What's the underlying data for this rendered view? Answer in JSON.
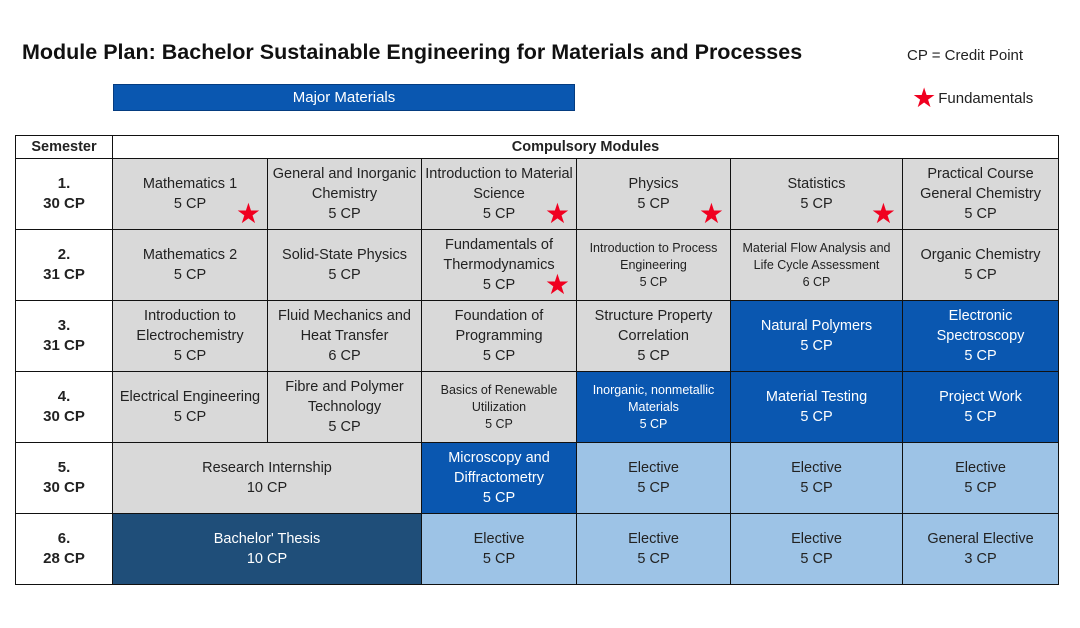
{
  "header": {
    "title": "Module Plan: Bachelor Sustainable Engineering for Materials and Processes",
    "cp_note": "CP = Credit Point",
    "major_label": "Major Materials",
    "legend_label": "Fundamentals"
  },
  "table": {
    "col_semester": "Semester",
    "col_modules": "Compulsory Modules",
    "rows": [
      {
        "sem": "1.",
        "sem_cp": "30 CP",
        "cells": [
          {
            "name": "Mathematics 1",
            "cp": "5 CP",
            "style": "grey",
            "star": true
          },
          {
            "name": "General and Inorganic Chemistry",
            "cp": "5 CP",
            "style": "grey",
            "star": false
          },
          {
            "name": "Introduction to Material Science",
            "cp": "5 CP",
            "style": "grey",
            "star": true
          },
          {
            "name": "Physics",
            "cp": "5 CP",
            "style": "grey",
            "star": true
          },
          {
            "name": "Statistics",
            "cp": "5 CP",
            "style": "grey",
            "star": true
          },
          {
            "name": "Practical Course General Chemistry",
            "cp": "5 CP",
            "style": "grey",
            "star": false
          }
        ]
      },
      {
        "sem": "2.",
        "sem_cp": "31 CP",
        "cells": [
          {
            "name": "Mathematics 2",
            "cp": "5 CP",
            "style": "grey",
            "star": false
          },
          {
            "name": "Solid-State Physics",
            "cp": "5 CP",
            "style": "grey",
            "star": false
          },
          {
            "name": "Fundamentals of Thermodynamics",
            "cp": "5 CP",
            "style": "grey",
            "star": true
          },
          {
            "name": "Introduction to Process Engineering",
            "cp": "5 CP",
            "style": "grey",
            "star": false,
            "small": true
          },
          {
            "name": "Material Flow Analysis and Life Cycle Assessment",
            "cp": "6 CP",
            "style": "grey",
            "star": false,
            "small": true
          },
          {
            "name": "Organic Chemistry",
            "cp": "5 CP",
            "style": "grey",
            "star": false
          }
        ]
      },
      {
        "sem": "3.",
        "sem_cp": "31 CP",
        "cells": [
          {
            "name": "Introduction to Electrochemistry",
            "cp": "5 CP",
            "style": "grey",
            "star": false
          },
          {
            "name": "Fluid Mechanics and Heat Transfer",
            "cp": "6 CP",
            "style": "grey",
            "star": false
          },
          {
            "name": "Foundation of Programming",
            "cp": "5 CP",
            "style": "grey",
            "star": false
          },
          {
            "name": "Structure Property Correlation",
            "cp": "5 CP",
            "style": "grey",
            "star": false
          },
          {
            "name": "Natural Polymers",
            "cp": "5 CP",
            "style": "blue",
            "star": false
          },
          {
            "name": "Electronic Spectroscopy",
            "cp": "5 CP",
            "style": "blue",
            "star": false
          }
        ]
      },
      {
        "sem": "4.",
        "sem_cp": "30 CP",
        "cells": [
          {
            "name": "Electrical Engineering",
            "cp": "5 CP",
            "style": "grey",
            "star": false
          },
          {
            "name": "Fibre and Polymer Technology",
            "cp": "5 CP",
            "style": "grey",
            "star": false
          },
          {
            "name": "Basics of Renewable Utilization",
            "cp": "5 CP",
            "style": "grey",
            "star": false,
            "small": true
          },
          {
            "name": "Inorganic, nonmetallic Materials",
            "cp": "5 CP",
            "style": "blue",
            "star": false,
            "small": true
          },
          {
            "name": "Material Testing",
            "cp": "5 CP",
            "style": "blue",
            "star": false
          },
          {
            "name": "Project Work",
            "cp": "5 CP",
            "style": "blue",
            "star": false
          }
        ]
      },
      {
        "sem": "5.",
        "sem_cp": "30 CP",
        "cells": [
          {
            "name": "Research Internship",
            "cp": "10 CP",
            "style": "grey",
            "star": false,
            "span": 2
          },
          {
            "name": "Microscopy and Diffractometry",
            "cp": "5 CP",
            "style": "blue",
            "star": false
          },
          {
            "name": "Elective",
            "cp": "5 CP",
            "style": "lblue",
            "star": false
          },
          {
            "name": "Elective",
            "cp": "5 CP",
            "style": "lblue",
            "star": false
          },
          {
            "name": "Elective",
            "cp": "5 CP",
            "style": "lblue",
            "star": false
          }
        ]
      },
      {
        "sem": "6.",
        "sem_cp": "28 CP",
        "cells": [
          {
            "name": "Bachelor' Thesis",
            "cp": "10 CP",
            "style": "dblue",
            "star": false,
            "span": 2
          },
          {
            "name": "Elective",
            "cp": "5 CP",
            "style": "lblue",
            "star": false
          },
          {
            "name": "Elective",
            "cp": "5 CP",
            "style": "lblue",
            "star": false
          },
          {
            "name": "Elective",
            "cp": "5 CP",
            "style": "lblue",
            "star": false
          },
          {
            "name": "General Elective",
            "cp": "3 CP",
            "style": "lblue",
            "star": false
          }
        ]
      }
    ]
  },
  "colors": {
    "grey": "#d9d9d9",
    "major_blue": "#0a57b0",
    "elective_light_blue": "#9dc3e6",
    "thesis_dark_blue": "#1f4e79",
    "star_red": "#f00020"
  },
  "icons": {
    "fundamentals": "red-star-icon"
  }
}
